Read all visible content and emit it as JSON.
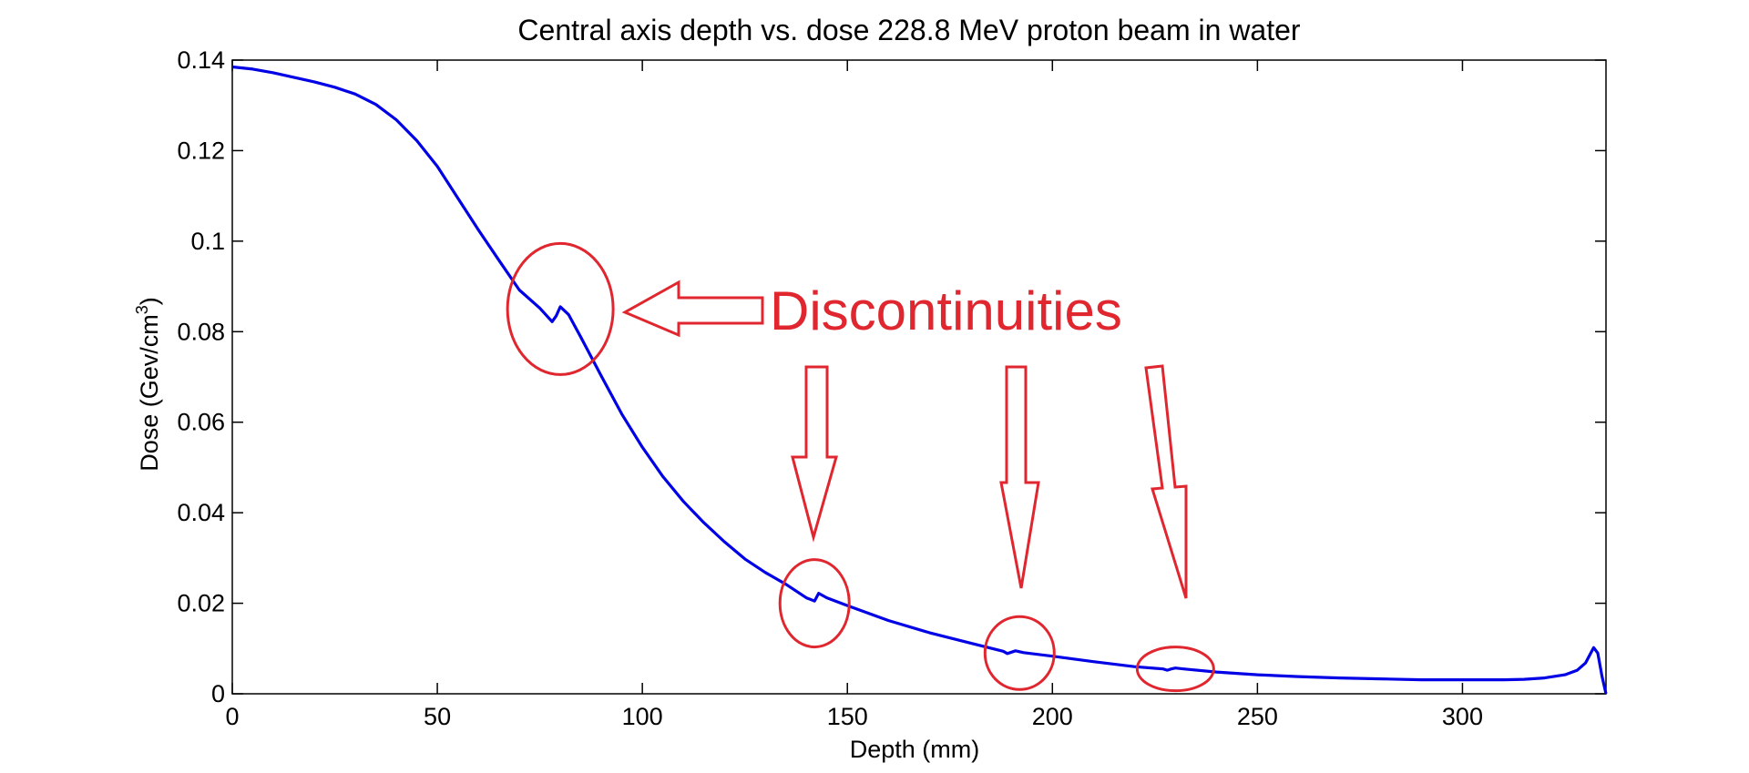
{
  "chart_data": {
    "type": "line",
    "title": "Central axis depth vs. dose 228.8 MeV proton beam in water",
    "xlabel": "Depth (mm)",
    "ylabel_main": "Dose (Gev/cm",
    "ylabel_sup": "3",
    "ylabel_close": ")",
    "xlim": [
      0,
      335
    ],
    "ylim": [
      0,
      0.14
    ],
    "x_ticks": [
      0,
      50,
      100,
      150,
      200,
      250,
      300
    ],
    "x_tick_labels": [
      "0",
      "50",
      "100",
      "150",
      "200",
      "250",
      "300"
    ],
    "y_ticks": [
      0,
      0.02,
      0.04,
      0.06,
      0.08,
      0.1,
      0.12,
      0.14
    ],
    "y_tick_labels": [
      "0",
      "0.02",
      "0.04",
      "0.06",
      "0.08",
      "0.1",
      "0.12",
      "0.14"
    ],
    "grid": false,
    "series": [
      {
        "color": "#0000e6",
        "x": [
          0,
          5,
          10,
          15,
          20,
          25,
          30,
          35,
          40,
          45,
          50,
          55,
          60,
          65,
          70,
          75,
          78,
          79,
          80,
          82,
          85,
          90,
          95,
          100,
          105,
          110,
          115,
          120,
          125,
          130,
          135,
          140,
          142,
          143,
          145,
          150,
          160,
          170,
          180,
          188,
          189,
          190,
          191,
          193,
          200,
          210,
          220,
          227,
          228,
          229,
          230,
          232,
          240,
          250,
          260,
          270,
          280,
          290,
          300,
          310,
          315,
          320,
          325,
          328,
          330,
          331,
          332,
          333,
          334,
          335
        ],
        "y": [
          0.1385,
          0.138,
          0.1372,
          0.1362,
          0.1352,
          0.134,
          0.1325,
          0.1302,
          0.1268,
          0.1222,
          0.1165,
          0.1095,
          0.1025,
          0.0958,
          0.0892,
          0.0852,
          0.0822,
          0.0835,
          0.0855,
          0.0838,
          0.0788,
          0.0702,
          0.0618,
          0.0545,
          0.048,
          0.0425,
          0.0378,
          0.0336,
          0.0298,
          0.0268,
          0.0242,
          0.0212,
          0.0205,
          0.0222,
          0.0212,
          0.0195,
          0.0162,
          0.0135,
          0.0112,
          0.0094,
          0.0089,
          0.0092,
          0.0095,
          0.0091,
          0.0083,
          0.0071,
          0.006,
          0.0055,
          0.0052,
          0.0055,
          0.0057,
          0.0055,
          0.0048,
          0.0042,
          0.0038,
          0.0035,
          0.0033,
          0.0031,
          0.0031,
          0.0031,
          0.0032,
          0.0035,
          0.0042,
          0.0052,
          0.0068,
          0.0085,
          0.0102,
          0.009,
          0.004,
          0.0
        ]
      }
    ],
    "annotation_text": "Discontinuities",
    "annotation_color": "#e0262f",
    "annotated_points": [
      {
        "x": 80,
        "y": 0.085
      },
      {
        "x": 142,
        "y": 0.02
      },
      {
        "x": 192,
        "y": 0.009
      },
      {
        "x": 230,
        "y": 0.0055
      }
    ]
  }
}
